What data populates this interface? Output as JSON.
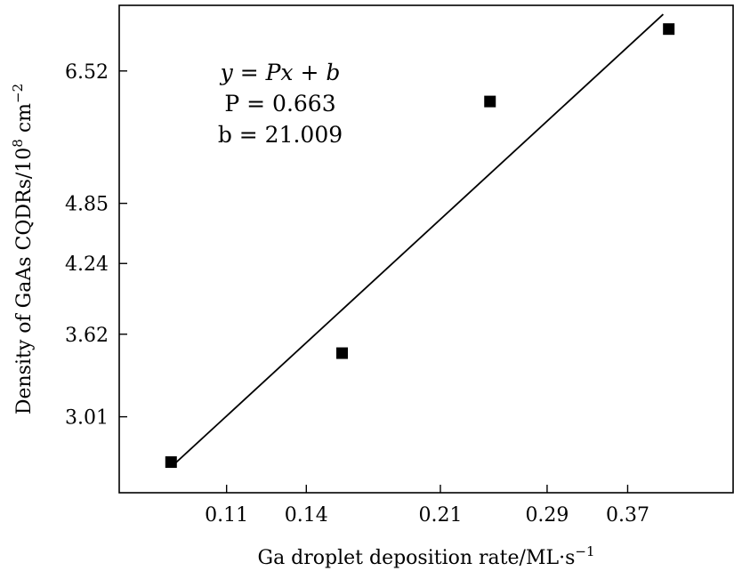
{
  "chart_data": {
    "type": "scatter",
    "xlabel": "Ga droplet deposition rate/ML·s",
    "xlabel_sup": "−1",
    "ylabel": "Density of GaAs CQDRs/10",
    "ylabel_sup1": "8",
    "ylabel_mid": " cm",
    "ylabel_sup2": "−2",
    "x_scale": "log",
    "y_scale": "log",
    "xlim": [
      0.0795,
      0.509
    ],
    "ylim": [
      2.54,
      7.55
    ],
    "x_ticks": [
      0.11,
      0.14,
      0.21,
      0.29,
      0.37
    ],
    "x_tick_labels": [
      "0.11",
      "0.14",
      "0.21",
      "0.29",
      "0.37"
    ],
    "y_ticks": [
      3.01,
      3.62,
      4.24,
      4.85,
      6.52
    ],
    "y_tick_labels": [
      "3.01",
      "3.62",
      "4.24",
      "4.85",
      "6.52"
    ],
    "points": [
      {
        "x": 0.093,
        "y": 2.72
      },
      {
        "x": 0.156,
        "y": 3.47
      },
      {
        "x": 0.244,
        "y": 6.09
      },
      {
        "x": 0.419,
        "y": 7.16
      }
    ],
    "fit_line": {
      "x": [
        0.093,
        0.412
      ],
      "y": [
        2.69,
        7.4
      ]
    },
    "annotation": {
      "line1": "y = Px + b",
      "line2": "P = 0.663",
      "line3": "b = 21.009"
    },
    "grid": false,
    "legend": "none"
  }
}
